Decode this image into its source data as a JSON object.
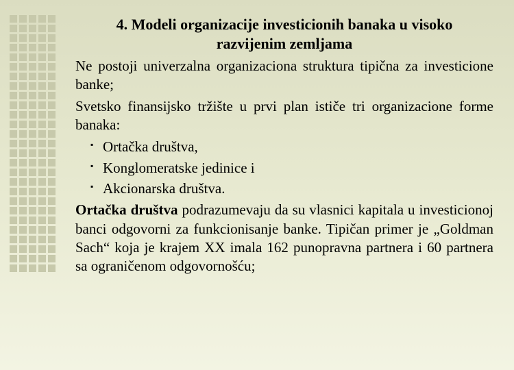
{
  "title_line1": "4. Modeli organizacije investicionih banaka u visoko",
  "title_line2": "razvijenim zemljama",
  "para1": "Ne postoji univerzalna organizaciona struktura tipična za investicione banke;",
  "para2": "Svetsko finansijsko tržište u prvi plan ističe tri organizacione forme banaka:",
  "bullets": {
    "b1": "Ortačka društva,",
    "b2": "Konglomeratske jedinice i",
    "b3": "Akcionarska društva."
  },
  "para3_bold": "Ortačka društva",
  "para3_rest": " podrazumevaju da su vlasnici kapitala u investicionoj banci odgovorni za funkcionisanje banke. Tipičan primer je „Goldman Sach“ koja je krajem XX imala 162 punopravna partnera i 60 partnera sa ograničenom odgovornošću;",
  "decor": {
    "square_color": "#c7c9ab",
    "bg_top": "#dbddc1",
    "bg_bottom": "#f3f4e3",
    "rows": 27,
    "cols": 5
  }
}
